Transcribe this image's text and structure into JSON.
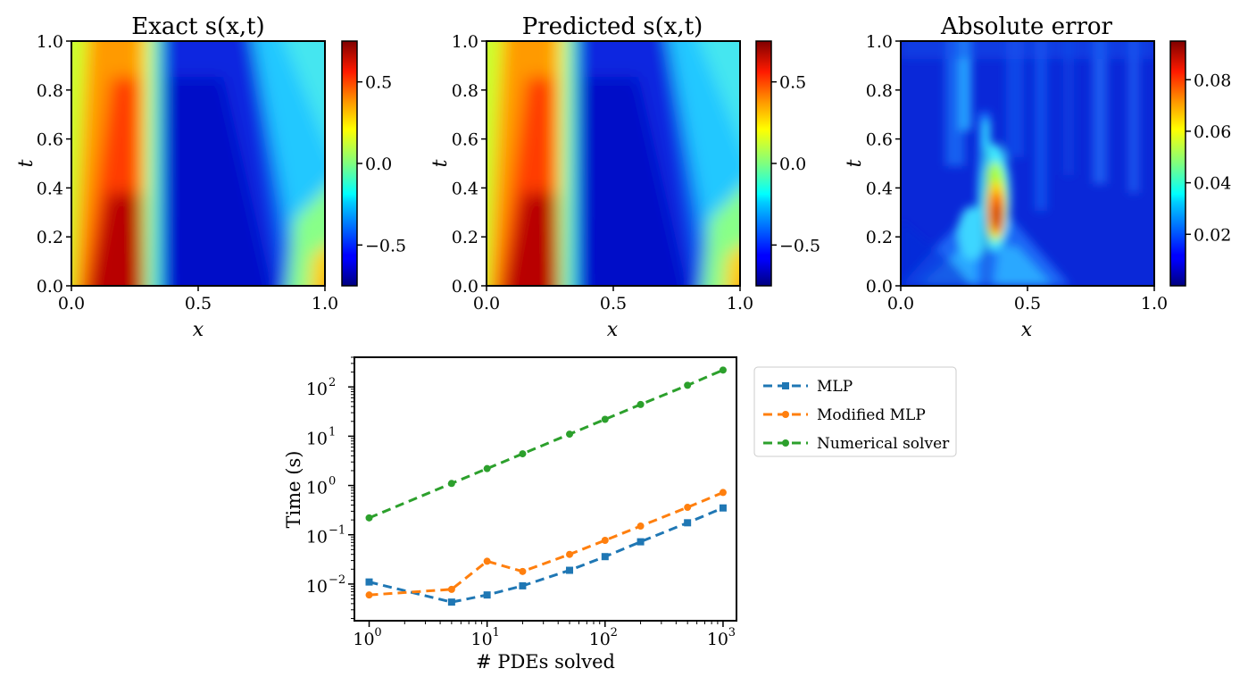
{
  "chart_data": [
    {
      "type": "heatmap",
      "title": "Exact s(x,t)",
      "xlabel": "x",
      "ylabel": "t",
      "xlim": [
        0.0,
        1.0
      ],
      "ylim": [
        0.0,
        1.0
      ],
      "x_ticks": [
        "0.0",
        "0.5",
        "1.0"
      ],
      "y_ticks": [
        "0.0",
        "0.2",
        "0.4",
        "0.6",
        "0.8",
        "1.0"
      ],
      "colorbar_ticks": [
        "0.5",
        "0.0",
        "−0.5"
      ],
      "colorbar_range": [
        -0.75,
        0.75
      ],
      "colormap": "jet"
    },
    {
      "type": "heatmap",
      "title": "Predicted s(x,t)",
      "xlabel": "x",
      "ylabel": "t",
      "xlim": [
        0.0,
        1.0
      ],
      "ylim": [
        0.0,
        1.0
      ],
      "x_ticks": [
        "0.0",
        "0.5",
        "1.0"
      ],
      "y_ticks": [
        "0.0",
        "0.2",
        "0.4",
        "0.6",
        "0.8",
        "1.0"
      ],
      "colorbar_ticks": [
        "0.5",
        "0.0",
        "−0.5"
      ],
      "colorbar_range": [
        -0.75,
        0.75
      ],
      "colormap": "jet"
    },
    {
      "type": "heatmap",
      "title": "Absolute error",
      "xlabel": "x",
      "ylabel": "t",
      "xlim": [
        0.0,
        1.0
      ],
      "ylim": [
        0.0,
        1.0
      ],
      "x_ticks": [
        "0.0",
        "0.5",
        "1.0"
      ],
      "y_ticks": [
        "0.0",
        "0.2",
        "0.4",
        "0.6",
        "0.8",
        "1.0"
      ],
      "colorbar_ticks": [
        "0.08",
        "0.06",
        "0.04",
        "0.02"
      ],
      "colorbar_range": [
        0.0,
        0.095
      ],
      "colormap": "jet"
    },
    {
      "type": "line",
      "xlabel": "# PDEs solved",
      "ylabel": "Time (s)",
      "x_scale": "log",
      "y_scale": "log",
      "xlim": [
        0.75,
        1300
      ],
      "ylim": [
        0.0018,
        400
      ],
      "x_ticks": [
        {
          "value": 1,
          "label": "10",
          "exp": "0"
        },
        {
          "value": 10,
          "label": "10",
          "exp": "1"
        },
        {
          "value": 100,
          "label": "10",
          "exp": "2"
        },
        {
          "value": 1000,
          "label": "10",
          "exp": "3"
        }
      ],
      "y_ticks": [
        {
          "value": 0.01,
          "label": "10",
          "exp": "−2"
        },
        {
          "value": 0.1,
          "label": "10",
          "exp": "−1"
        },
        {
          "value": 1,
          "label": "10",
          "exp": "0"
        },
        {
          "value": 10,
          "label": "10",
          "exp": "1"
        },
        {
          "value": 100,
          "label": "10",
          "exp": "2"
        }
      ],
      "x": [
        1,
        5,
        10,
        20,
        50,
        100,
        200,
        500,
        1000
      ],
      "legend_position": "outside-right",
      "series": [
        {
          "name": "MLP",
          "color": "#1f77b4",
          "marker": "square",
          "values": [
            0.011,
            0.0043,
            0.006,
            0.0092,
            0.019,
            0.036,
            0.072,
            0.175,
            0.35
          ]
        },
        {
          "name": "Modified MLP",
          "color": "#ff7f0e",
          "marker": "circle",
          "values": [
            0.006,
            0.0078,
            0.029,
            0.018,
            0.04,
            0.077,
            0.15,
            0.36,
            0.72
          ]
        },
        {
          "name": "Numerical solver",
          "color": "#2ca02c",
          "marker": "circle",
          "values": [
            0.22,
            1.1,
            2.2,
            4.4,
            11,
            22,
            44,
            108,
            220
          ]
        }
      ]
    }
  ]
}
